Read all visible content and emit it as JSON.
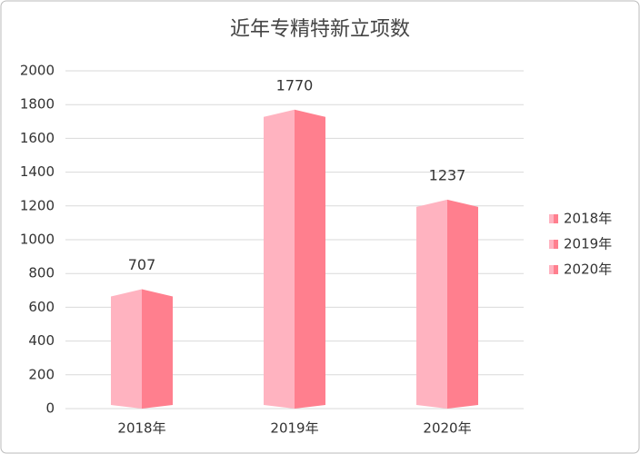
{
  "chart_data": {
    "type": "bar",
    "title": "近年专精特新立项数",
    "categories": [
      "2018年",
      "2019年",
      "2020年"
    ],
    "values": [
      707,
      1770,
      1237
    ],
    "color": "#ffb3c0",
    "ylim": [
      0,
      2000
    ],
    "yticks": [
      0,
      200,
      400,
      600,
      800,
      1000,
      1200,
      1400,
      1600,
      1800,
      2000
    ],
    "grid": true,
    "legend": "right"
  }
}
